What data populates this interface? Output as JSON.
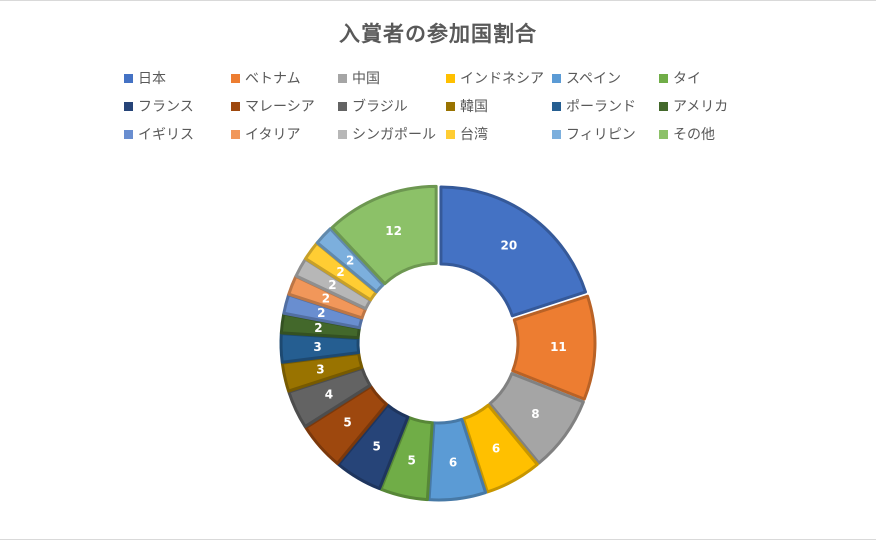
{
  "chart_data": {
    "type": "donut",
    "title": "入賞者の参加国割合",
    "legend_position": "top",
    "categories": [
      "日本",
      "ベトナム",
      "中国",
      "インドネシア",
      "スペイン",
      "タイ",
      "フランス",
      "マレーシア",
      "ブラジル",
      "韓国",
      "ポーランド",
      "アメリカ",
      "イギリス",
      "イタリア",
      "シンガポール",
      "台湾",
      "フィリピン",
      "その他"
    ],
    "values": [
      20,
      11,
      8,
      6,
      6,
      5,
      5,
      5,
      4,
      3,
      3,
      2,
      2,
      2,
      2,
      2,
      2,
      12
    ],
    "colors": [
      "#4472C4",
      "#ED7D31",
      "#A5A5A5",
      "#FFC000",
      "#5B9BD5",
      "#70AD47",
      "#264478",
      "#9E480E",
      "#636363",
      "#997300",
      "#255E91",
      "#43682B",
      "#698ED0",
      "#F1975A",
      "#B7B7B7",
      "#FFCD33",
      "#7CAFDD",
      "#8CC168"
    ],
    "data_labels": true
  }
}
